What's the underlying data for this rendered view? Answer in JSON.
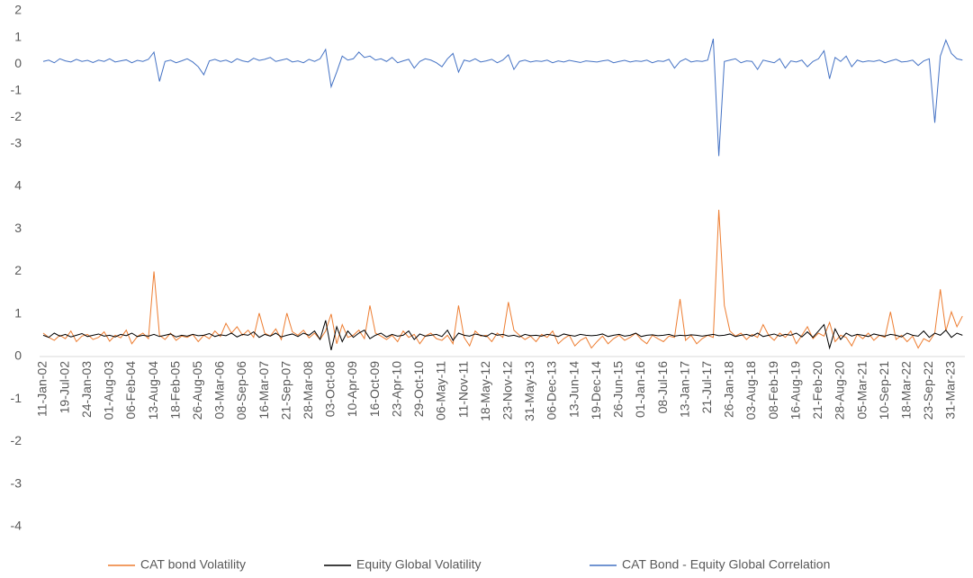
{
  "chart_data": {
    "type": "line",
    "categories": [
      "11-Jan-02",
      null,
      null,
      null,
      "19-Jul-02",
      null,
      null,
      null,
      "24-Jan-03",
      null,
      null,
      null,
      "01-Aug-03",
      null,
      null,
      null,
      "06-Feb-04",
      null,
      null,
      null,
      "13-Aug-04",
      null,
      null,
      null,
      "18-Feb-05",
      null,
      null,
      null,
      "26-Aug-05",
      null,
      null,
      null,
      "03-Mar-06",
      null,
      null,
      null,
      "08-Sep-06",
      null,
      null,
      null,
      "16-Mar-07",
      null,
      null,
      null,
      "21-Sep-07",
      null,
      null,
      null,
      "28-Mar-08",
      null,
      null,
      null,
      "03-Oct-08",
      null,
      null,
      null,
      "10-Apr-09",
      null,
      null,
      null,
      "16-Oct-09",
      null,
      null,
      null,
      "23-Apr-10",
      null,
      null,
      null,
      "29-Oct-10",
      null,
      null,
      null,
      "06-May-11",
      null,
      null,
      null,
      "11-Nov-11",
      null,
      null,
      null,
      "18-May-12",
      null,
      null,
      null,
      "23-Nov-12",
      null,
      null,
      null,
      "31-May-13",
      null,
      null,
      null,
      "06-Dec-13",
      null,
      null,
      null,
      "13-Jun-14",
      null,
      null,
      null,
      "19-Dec-14",
      null,
      null,
      null,
      "26-Jun-15",
      null,
      null,
      null,
      "01-Jan-16",
      null,
      null,
      null,
      "08-Jul-16",
      null,
      null,
      null,
      "13-Jan-17",
      null,
      null,
      null,
      "21-Jul-17",
      null,
      null,
      null,
      "26-Jan-18",
      null,
      null,
      null,
      "03-Aug-18",
      null,
      null,
      null,
      "08-Feb-19",
      null,
      null,
      null,
      "16-Aug-19",
      null,
      null,
      null,
      "21-Feb-20",
      null,
      null,
      null,
      "28-Aug-20",
      null,
      null,
      null,
      "05-Mar-21",
      null,
      null,
      null,
      "10-Sep-21",
      null,
      null,
      null,
      "18-Mar-22",
      null,
      null,
      null,
      "23-Sep-22",
      null,
      null,
      null,
      "31-Mar-23",
      null,
      null
    ],
    "series": [
      {
        "name": "CAT bond Volatility",
        "color": "#ed7d31",
        "values": [
          0.55,
          0.45,
          0.38,
          0.5,
          0.42,
          0.6,
          0.35,
          0.48,
          0.52,
          0.4,
          0.45,
          0.58,
          0.36,
          0.5,
          0.44,
          0.62,
          0.3,
          0.47,
          0.55,
          0.42,
          2.0,
          0.5,
          0.4,
          0.55,
          0.38,
          0.48,
          0.45,
          0.52,
          0.35,
          0.5,
          0.42,
          0.6,
          0.47,
          0.78,
          0.55,
          0.7,
          0.5,
          0.62,
          0.45,
          1.02,
          0.55,
          0.48,
          0.65,
          0.4,
          1.02,
          0.58,
          0.5,
          0.62,
          0.44,
          0.55,
          0.4,
          0.6,
          1.0,
          0.3,
          0.75,
          0.45,
          0.5,
          0.62,
          0.42,
          1.2,
          0.55,
          0.48,
          0.4,
          0.5,
          0.35,
          0.6,
          0.45,
          0.52,
          0.3,
          0.48,
          0.55,
          0.42,
          0.38,
          0.5,
          0.3,
          1.2,
          0.45,
          0.25,
          0.6,
          0.48,
          0.5,
          0.35,
          0.55,
          0.45,
          1.28,
          0.62,
          0.5,
          0.4,
          0.48,
          0.35,
          0.52,
          0.45,
          0.6,
          0.3,
          0.42,
          0.5,
          0.25,
          0.38,
          0.45,
          0.2,
          0.35,
          0.48,
          0.3,
          0.42,
          0.5,
          0.38,
          0.45,
          0.55,
          0.4,
          0.3,
          0.5,
          0.42,
          0.35,
          0.48,
          0.45,
          1.35,
          0.38,
          0.5,
          0.3,
          0.42,
          0.5,
          0.45,
          3.45,
          1.2,
          0.6,
          0.48,
          0.55,
          0.4,
          0.52,
          0.45,
          0.75,
          0.5,
          0.38,
          0.55,
          0.45,
          0.6,
          0.3,
          0.5,
          0.7,
          0.42,
          0.55,
          0.48,
          0.8,
          0.35,
          0.5,
          0.45,
          0.25,
          0.52,
          0.42,
          0.55,
          0.38,
          0.5,
          0.45,
          1.05,
          0.4,
          0.5,
          0.35,
          0.48,
          0.2,
          0.42,
          0.35,
          0.55,
          1.58,
          0.6,
          1.05,
          0.7,
          0.95
        ]
      },
      {
        "name": "Equity Global Volatility",
        "color": "#000000",
        "values": [
          0.5,
          0.45,
          0.55,
          0.48,
          0.52,
          0.46,
          0.5,
          0.54,
          0.47,
          0.5,
          0.53,
          0.48,
          0.5,
          0.46,
          0.52,
          0.49,
          0.55,
          0.47,
          0.5,
          0.48,
          0.52,
          0.47,
          0.5,
          0.53,
          0.46,
          0.5,
          0.48,
          0.52,
          0.49,
          0.5,
          0.54,
          0.47,
          0.51,
          0.49,
          0.55,
          0.46,
          0.52,
          0.5,
          0.58,
          0.45,
          0.52,
          0.48,
          0.55,
          0.46,
          0.5,
          0.53,
          0.47,
          0.55,
          0.5,
          0.6,
          0.4,
          0.85,
          0.15,
          0.7,
          0.35,
          0.6,
          0.45,
          0.55,
          0.62,
          0.42,
          0.5,
          0.55,
          0.46,
          0.52,
          0.48,
          0.5,
          0.6,
          0.4,
          0.53,
          0.48,
          0.5,
          0.52,
          0.47,
          0.62,
          0.38,
          0.55,
          0.5,
          0.48,
          0.53,
          0.5,
          0.47,
          0.55,
          0.5,
          0.52,
          0.48,
          0.5,
          0.46,
          0.52,
          0.49,
          0.5,
          0.48,
          0.52,
          0.5,
          0.47,
          0.53,
          0.5,
          0.48,
          0.52,
          0.5,
          0.49,
          0.5,
          0.53,
          0.47,
          0.5,
          0.52,
          0.48,
          0.5,
          0.55,
          0.47,
          0.5,
          0.51,
          0.49,
          0.5,
          0.52,
          0.48,
          0.5,
          0.49,
          0.51,
          0.5,
          0.48,
          0.5,
          0.52,
          0.49,
          0.5,
          0.53,
          0.47,
          0.5,
          0.52,
          0.48,
          0.55,
          0.47,
          0.5,
          0.53,
          0.48,
          0.52,
          0.5,
          0.55,
          0.46,
          0.58,
          0.45,
          0.6,
          0.75,
          0.2,
          0.65,
          0.4,
          0.55,
          0.48,
          0.52,
          0.5,
          0.47,
          0.53,
          0.5,
          0.48,
          0.52,
          0.5,
          0.46,
          0.55,
          0.5,
          0.48,
          0.6,
          0.45,
          0.55,
          0.5,
          0.62,
          0.45,
          0.55,
          0.5
        ]
      },
      {
        "name": "CAT Bond - Equity Global Correlation",
        "color": "#4472c4",
        "axis": "y2",
        "values": [
          0.1,
          0.15,
          0.05,
          0.2,
          0.12,
          0.08,
          0.18,
          0.1,
          0.14,
          0.06,
          0.15,
          0.1,
          0.2,
          0.08,
          0.12,
          0.16,
          0.05,
          0.14,
          0.1,
          0.18,
          0.45,
          -0.65,
          0.1,
          0.15,
          0.05,
          0.12,
          0.2,
          0.08,
          -0.1,
          -0.4,
          0.12,
          0.18,
          0.1,
          0.15,
          0.06,
          0.2,
          0.12,
          0.08,
          0.22,
          0.14,
          0.18,
          0.25,
          0.1,
          0.15,
          0.2,
          0.08,
          0.12,
          0.05,
          0.18,
          0.1,
          0.2,
          0.55,
          -0.85,
          -0.3,
          0.3,
          0.15,
          0.2,
          0.45,
          0.25,
          0.3,
          0.15,
          0.2,
          0.1,
          0.25,
          0.05,
          0.12,
          0.18,
          -0.15,
          0.1,
          0.2,
          0.15,
          0.05,
          -0.1,
          0.2,
          0.4,
          -0.3,
          0.15,
          0.1,
          0.2,
          0.08,
          0.12,
          0.18,
          0.05,
          0.15,
          0.35,
          -0.2,
          0.1,
          0.15,
          0.08,
          0.12,
          0.1,
          0.15,
          0.05,
          0.12,
          0.08,
          0.14,
          0.1,
          0.06,
          0.12,
          0.1,
          0.08,
          0.12,
          0.15,
          0.05,
          0.1,
          0.14,
          0.08,
          0.12,
          0.1,
          0.15,
          0.05,
          0.12,
          0.1,
          0.18,
          -0.15,
          0.1,
          0.2,
          0.08,
          0.12,
          0.1,
          0.15,
          0.95,
          -3.45,
          0.1,
          0.15,
          0.2,
          0.05,
          0.12,
          0.1,
          -0.2,
          0.15,
          0.1,
          0.05,
          0.2,
          -0.15,
          0.12,
          0.08,
          0.15,
          -0.1,
          0.1,
          0.2,
          0.5,
          -0.55,
          0.25,
          0.1,
          0.3,
          -0.1,
          0.15,
          0.08,
          0.12,
          0.1,
          0.15,
          0.05,
          0.12,
          0.18,
          0.08,
          0.1,
          0.15,
          -0.05,
          0.12,
          0.2,
          -2.2,
          0.3,
          0.9,
          0.4,
          0.2,
          0.15
        ]
      }
    ],
    "ylim": [
      -4,
      4
    ],
    "yticks": [
      4,
      3,
      2,
      1,
      0,
      -1,
      -2,
      -3,
      -4
    ],
    "y2lim": [
      -4,
      2
    ],
    "y2ticks": [
      2,
      1,
      0,
      -1,
      -2,
      -3
    ],
    "grid": false,
    "legend": "bottom"
  }
}
